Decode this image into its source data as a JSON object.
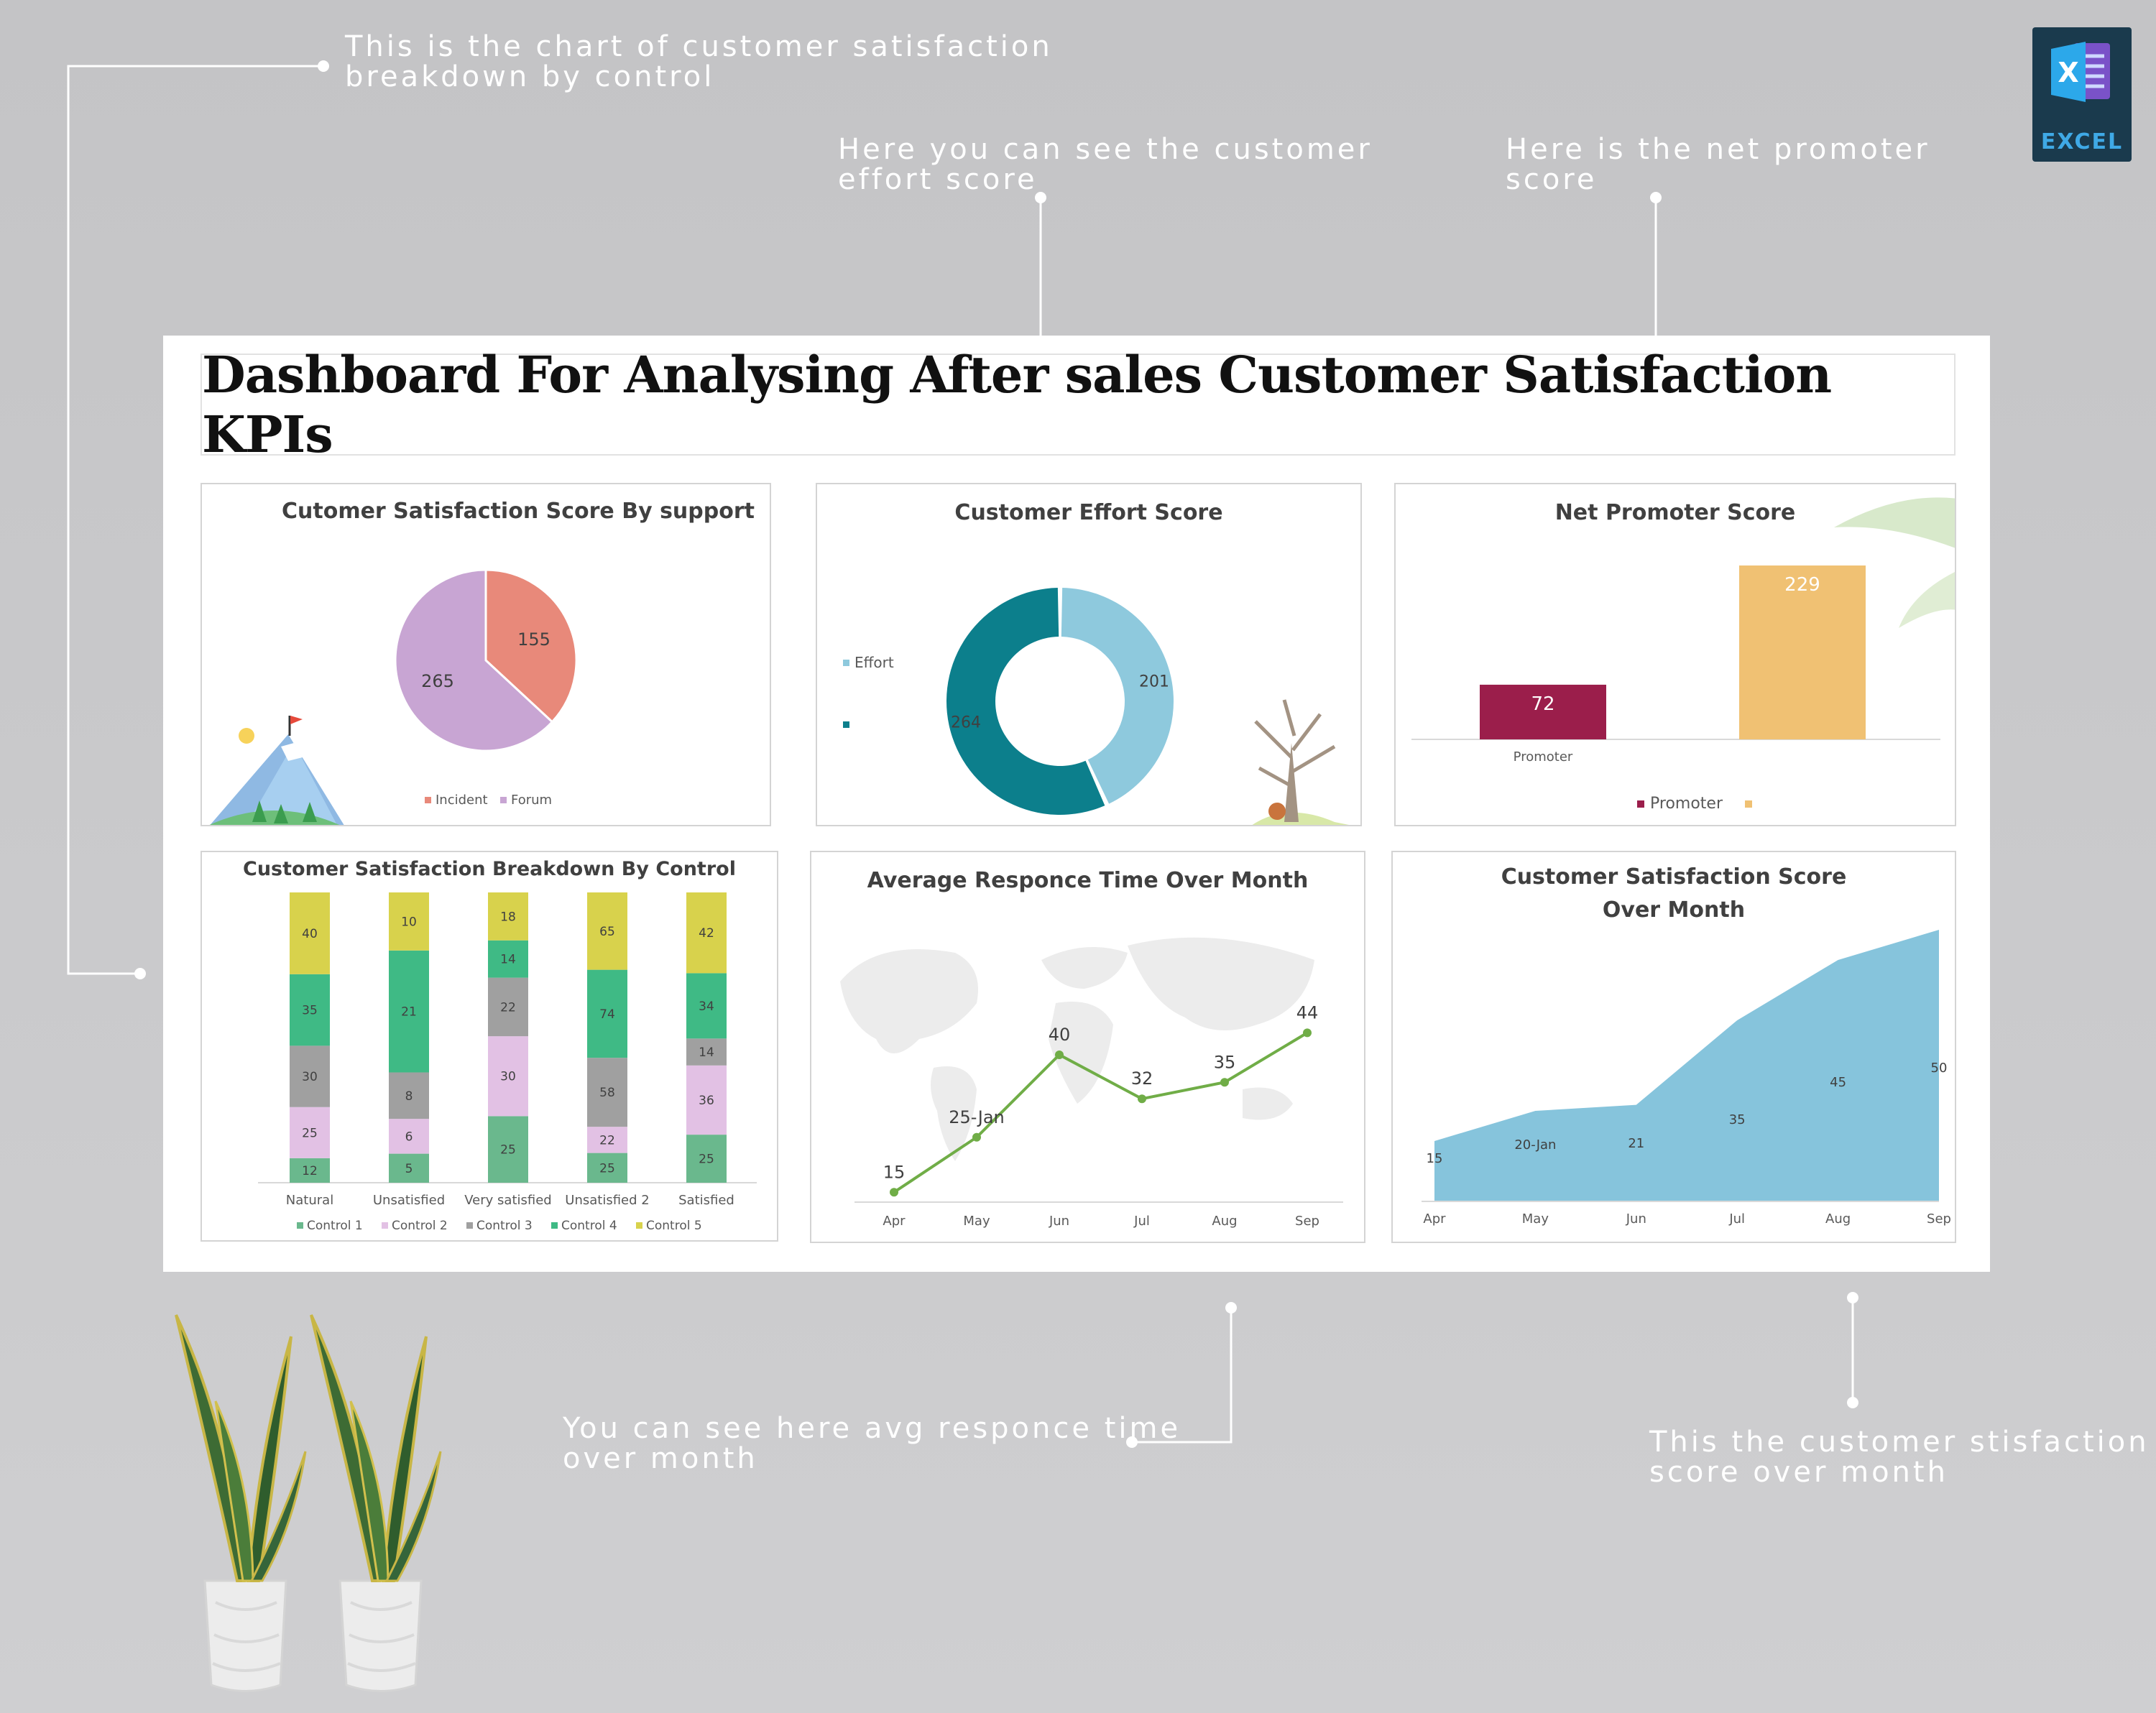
{
  "callouts": {
    "breakdown": "This is the chart of customer satisfaction\nbreakdown by control",
    "effort": "Here you can see the customer\neffort score",
    "nps": "Here is the net promoter\nscore",
    "response": "You can see here avg responce time\nover month",
    "csat_month": "This the customer stisfaction\nscore over month"
  },
  "excel_badge": {
    "label": "EXCEL",
    "icon": "excel-icon"
  },
  "dashboard": {
    "title": "Dashboard For Analysing After sales Customer Satisfaction KPIs"
  },
  "colors": {
    "incident": "#e8897a",
    "forum": "#c8a5d3",
    "effort_light": "#8ec9dd",
    "effort_dark": "#0c7f8c",
    "promoter": "#9b1e4b",
    "nps_other": "#f0c173",
    "control1": "#6ab88d",
    "control2": "#e2c1e4",
    "control3": "#a0a0a0",
    "control4": "#3fba85",
    "control5": "#d8d24c",
    "line": "#70ad47",
    "area": "#86c4dc"
  },
  "chart_data": [
    {
      "id": "csat_support",
      "type": "pie",
      "title": "Cutomer Satisfaction Score By support",
      "slices": [
        {
          "label": "Incident",
          "value": 155
        },
        {
          "label": "Forum",
          "value": 265
        }
      ],
      "legend": [
        "Incident",
        "Forum"
      ],
      "legend_position": "bottom"
    },
    {
      "id": "effort",
      "type": "pie",
      "subtype": "doughnut",
      "title": "Customer Effort Score",
      "slices": [
        {
          "label": "Effort",
          "value": 201
        },
        {
          "label": "",
          "value": 264
        }
      ],
      "legend": [
        "Effort",
        ""
      ],
      "legend_position": "left"
    },
    {
      "id": "nps",
      "type": "bar",
      "title": "Net Promoter Score",
      "categories": [
        "Promoter",
        ""
      ],
      "values": [
        72,
        229
      ],
      "legend": [
        "Promoter",
        ""
      ],
      "legend_position": "bottom"
    },
    {
      "id": "breakdown",
      "type": "bar",
      "stacked": true,
      "title": "Customer Satisfaction Breakdown By Control",
      "categories": [
        "Natural",
        "Unsatisfied",
        "Very satisfied",
        "Unsatisfied 2",
        "Satisfied"
      ],
      "series": [
        {
          "name": "Control 1",
          "values": [
            12,
            5,
            25,
            25,
            25
          ]
        },
        {
          "name": "Control 2",
          "values": [
            25,
            6,
            30,
            22,
            36
          ]
        },
        {
          "name": "Control 3",
          "values": [
            30,
            8,
            22,
            58,
            14
          ]
        },
        {
          "name": "Control 4",
          "values": [
            35,
            21,
            14,
            74,
            34
          ]
        },
        {
          "name": "Control 5",
          "values": [
            40,
            10,
            18,
            65,
            42
          ]
        }
      ],
      "legend_position": "bottom"
    },
    {
      "id": "response",
      "type": "line",
      "title": "Average Responce Time Over Month",
      "categories": [
        "Apr",
        "May",
        "Jun",
        "Jul",
        "Aug",
        "Sep"
      ],
      "values": [
        15,
        25,
        40,
        32,
        35,
        44
      ],
      "data_labels": [
        "15",
        "25-Jan",
        "40",
        "32",
        "35",
        "44"
      ]
    },
    {
      "id": "csat_month",
      "type": "area",
      "title": "Customer Satisfaction Score Over Month",
      "categories": [
        "Apr",
        "May",
        "Jun",
        "Jul",
        "Aug",
        "Sep"
      ],
      "values": [
        15,
        20,
        21,
        35,
        45,
        50
      ],
      "data_labels": [
        "15",
        "20-Jan",
        "21",
        "35",
        "45",
        "50"
      ]
    }
  ]
}
